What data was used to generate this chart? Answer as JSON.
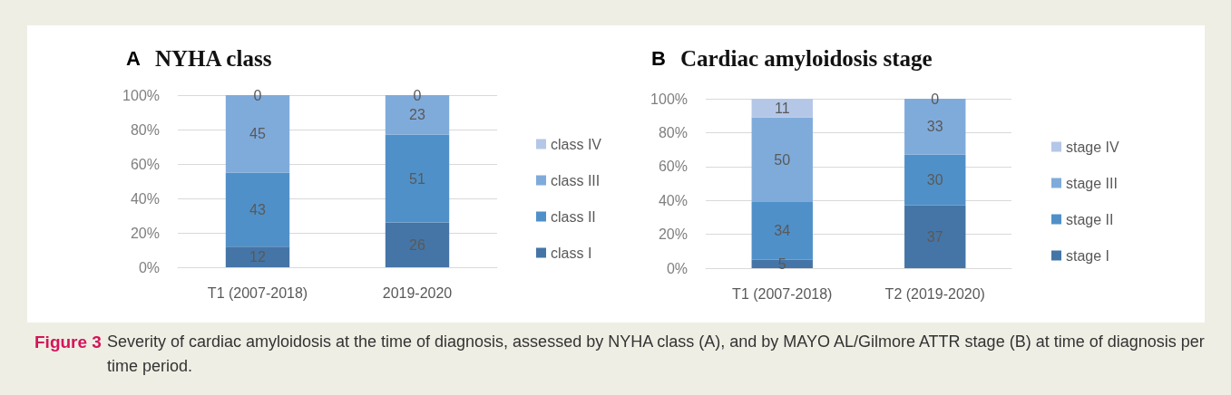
{
  "chart_data": [
    {
      "type": "bar",
      "title": "A NYHA class",
      "categories": [
        "T1 (2007-2018)",
        "2019-2020"
      ],
      "series": [
        {
          "name": "class I",
          "color": "#4575a6",
          "values": [
            12,
            26
          ]
        },
        {
          "name": "class II",
          "color": "#5090c8",
          "values": [
            43,
            51
          ]
        },
        {
          "name": "class III",
          "color": "#7fabdb",
          "values": [
            45,
            23
          ]
        },
        {
          "name": "class IV",
          "color": "#b4c7e7",
          "values": [
            0,
            0
          ]
        }
      ],
      "stacked": true,
      "data_labels": true,
      "ylim": [
        0,
        100
      ],
      "yticks": [
        {
          "value": 0,
          "label": "0%"
        },
        {
          "value": 20,
          "label": "20%"
        },
        {
          "value": 40,
          "label": "40%"
        },
        {
          "value": 60,
          "label": "60%"
        },
        {
          "value": 80,
          "label": "80%"
        },
        {
          "value": 100,
          "label": "100%"
        }
      ],
      "grid": "y",
      "legend": "right",
      "annotations": [
        "Figure 3",
        "Severity of cardiac amyloidosis at the time of diagnosis, assessed by NYHA class (A), and by MAYO AL/Gilmore ATTR stage (B) at time of diagnosis per time period."
      ]
    },
    {
      "type": "bar",
      "title": "B Cardiac amyloidosis stage",
      "categories": [
        "T1 (2007-2018)",
        "T2 (2019-2020)"
      ],
      "series": [
        {
          "name": "stage I",
          "color": "#4575a6",
          "values": [
            5,
            37
          ]
        },
        {
          "name": "stage II",
          "color": "#5090c8",
          "values": [
            34,
            30
          ]
        },
        {
          "name": "stage III",
          "color": "#7fabdb",
          "values": [
            50,
            33
          ]
        },
        {
          "name": "stage IV",
          "color": "#b4c7e7",
          "values": [
            11,
            0
          ]
        }
      ],
      "stacked": true,
      "data_labels": true,
      "ylim": [
        0,
        100
      ],
      "yticks": [
        {
          "value": 0,
          "label": "0%"
        },
        {
          "value": 20,
          "label": "20%"
        },
        {
          "value": 40,
          "label": "40%"
        },
        {
          "value": 60,
          "label": "60%"
        },
        {
          "value": 80,
          "label": "80%"
        },
        {
          "value": 100,
          "label": "100%"
        }
      ],
      "grid": "y",
      "legend": "right"
    }
  ]
}
